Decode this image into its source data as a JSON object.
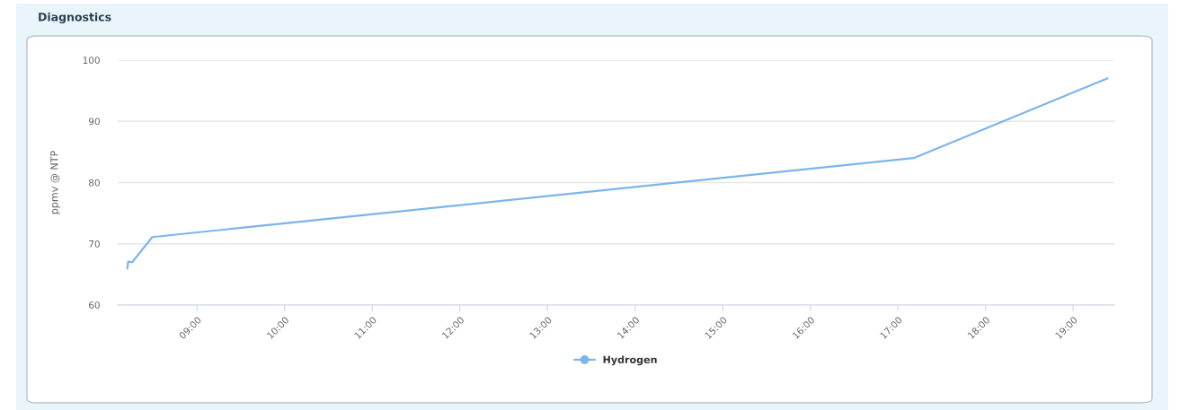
{
  "chart_data": {
    "type": "line",
    "title": "Diagnostics",
    "ylabel": "ppmv @ NTP",
    "x": [
      8.205,
      8.215,
      8.26,
      8.49,
      17.18,
      19.39
    ],
    "series": [
      {
        "name": "Hydrogen",
        "color": "#7cb5ec",
        "values": [
          66.0,
          67.1,
          67.0,
          71.1,
          84.0,
          97.0
        ]
      }
    ],
    "xlim": [
      8.095,
      19.47
    ],
    "xticks": [
      {
        "value": 9,
        "label": "09:00"
      },
      {
        "value": 10,
        "label": "10:00"
      },
      {
        "value": 11,
        "label": "11:00"
      },
      {
        "value": 12,
        "label": "12:00"
      },
      {
        "value": 13,
        "label": "13:00"
      },
      {
        "value": 14,
        "label": "14:00"
      },
      {
        "value": 15,
        "label": "15:00"
      },
      {
        "value": 16,
        "label": "16:00"
      },
      {
        "value": 17,
        "label": "17:00"
      },
      {
        "value": 18,
        "label": "18:00"
      },
      {
        "value": 19,
        "label": "19:00"
      }
    ],
    "ylim": [
      60,
      100
    ],
    "yticks": [
      60,
      70,
      80,
      90,
      100
    ],
    "grid": "y",
    "legend": "bottom",
    "marker": "none",
    "line_style": "solid"
  }
}
